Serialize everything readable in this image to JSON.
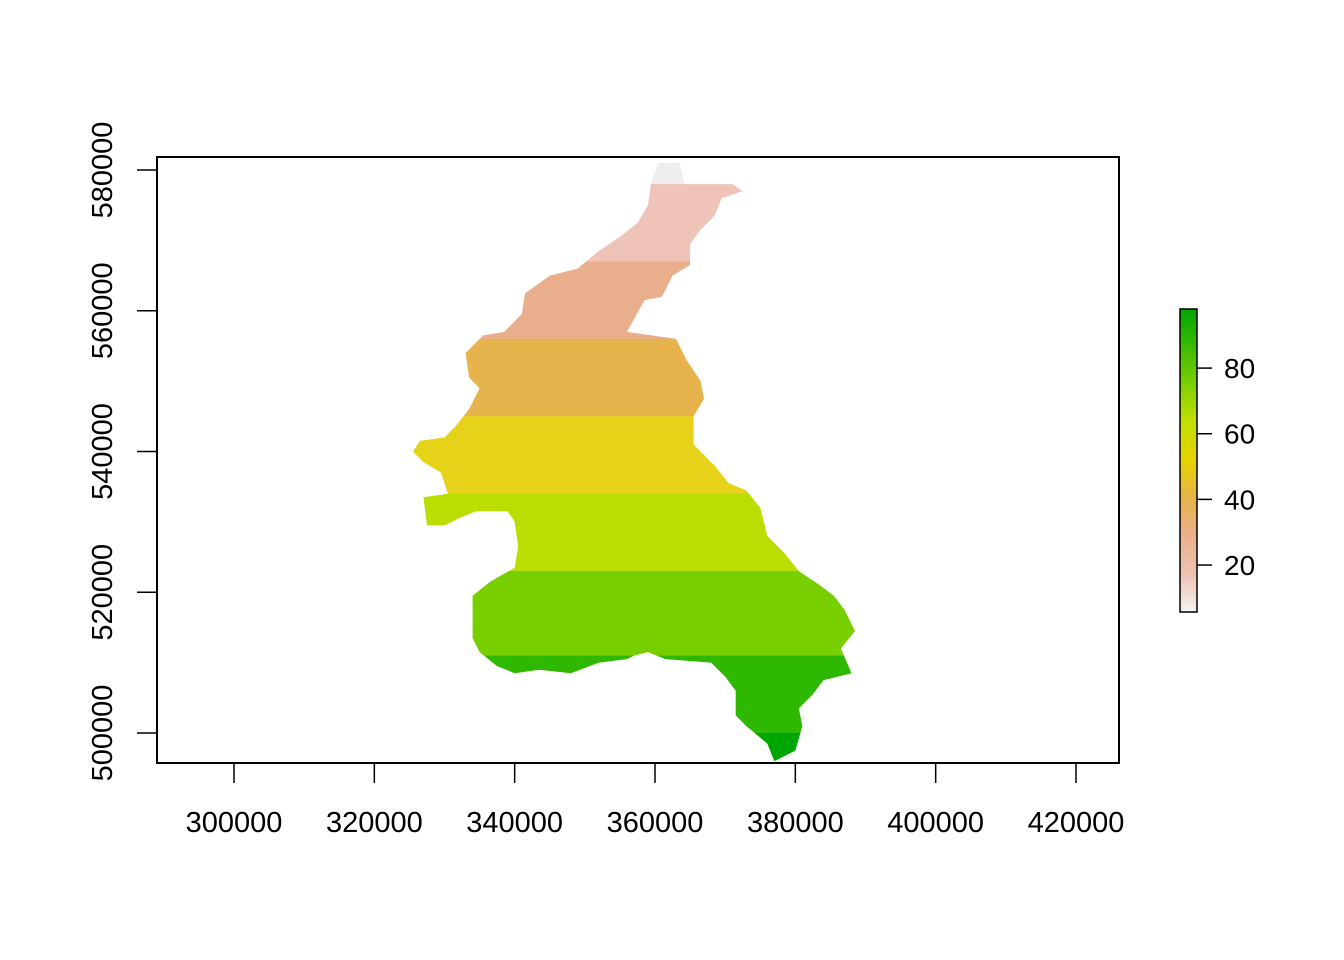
{
  "map": {
    "type": "raster",
    "x_axis": {
      "range": [
        288000,
        425000
      ],
      "ticks": [
        "300000",
        "320000",
        "340000",
        "360000",
        "380000",
        "400000",
        "420000"
      ]
    },
    "y_axis": {
      "range": [
        496000,
        582000
      ],
      "ticks": [
        "500000",
        "520000",
        "540000",
        "560000",
        "580000"
      ]
    },
    "legend": {
      "placement": "right",
      "range": [
        6,
        98
      ],
      "ticks": [
        "20",
        "40",
        "60",
        "80"
      ],
      "colors": [
        "#f2f2f2",
        "#efc2b3",
        "#eab18c",
        "#e6b34a",
        "#e6d200",
        "#c3e000",
        "#7ed000",
        "#3cba00",
        "#00a600"
      ]
    },
    "bands": [
      {
        "y_from": 578000,
        "y_to": 582000,
        "value": 6,
        "color": "#efeeee"
      },
      {
        "y_from": 567000,
        "y_to": 578000,
        "value": 16,
        "color": "#efc3b8"
      },
      {
        "y_from": 556000,
        "y_to": 567000,
        "value": 28,
        "color": "#e9ae8c"
      },
      {
        "y_from": 545000,
        "y_to": 556000,
        "value": 38,
        "color": "#e7b34d"
      },
      {
        "y_from": 534000,
        "y_to": 545000,
        "value": 50,
        "color": "#e6d218"
      },
      {
        "y_from": 523000,
        "y_to": 534000,
        "value": 60,
        "color": "#bcdd00"
      },
      {
        "y_from": 511000,
        "y_to": 523000,
        "value": 72,
        "color": "#78cf00"
      },
      {
        "y_from": 500000,
        "y_to": 511000,
        "value": 86,
        "color": "#2fb800"
      },
      {
        "y_from": 495000,
        "y_to": 500000,
        "value": 96,
        "color": "#00a600"
      }
    ],
    "region_outline": [
      [
        360500,
        581000
      ],
      [
        363500,
        581000
      ],
      [
        364200,
        578000
      ],
      [
        371000,
        578000
      ],
      [
        372500,
        577000
      ],
      [
        369500,
        576000
      ],
      [
        368500,
        573500
      ],
      [
        366500,
        571500
      ],
      [
        365000,
        569500
      ],
      [
        365000,
        566500
      ],
      [
        362500,
        565000
      ],
      [
        361000,
        562000
      ],
      [
        358500,
        561500
      ],
      [
        356000,
        557000
      ],
      [
        363000,
        556000
      ],
      [
        364500,
        553000
      ],
      [
        366500,
        550000
      ],
      [
        367000,
        547500
      ],
      [
        365500,
        545000
      ],
      [
        365500,
        541000
      ],
      [
        368500,
        538000
      ],
      [
        370500,
        535500
      ],
      [
        373000,
        534500
      ],
      [
        375000,
        532000
      ],
      [
        376000,
        528000
      ],
      [
        378500,
        525500
      ],
      [
        380500,
        523000
      ],
      [
        383500,
        521000
      ],
      [
        385500,
        519500
      ],
      [
        387000,
        517500
      ],
      [
        388500,
        514500
      ],
      [
        386500,
        512000
      ],
      [
        388000,
        508500
      ],
      [
        384000,
        507500
      ],
      [
        382500,
        505500
      ],
      [
        380500,
        503500
      ],
      [
        381000,
        501000
      ],
      [
        380000,
        497500
      ],
      [
        377000,
        496000
      ],
      [
        376000,
        498500
      ],
      [
        373000,
        501000
      ],
      [
        371500,
        502500
      ],
      [
        371500,
        506000
      ],
      [
        370000,
        508000
      ],
      [
        368000,
        510000
      ],
      [
        361500,
        510500
      ],
      [
        359000,
        511500
      ],
      [
        357000,
        511000
      ],
      [
        356000,
        510500
      ],
      [
        352000,
        510000
      ],
      [
        348000,
        508500
      ],
      [
        343500,
        509000
      ],
      [
        340000,
        508500
      ],
      [
        337500,
        509500
      ],
      [
        335000,
        511500
      ],
      [
        334000,
        513500
      ],
      [
        334000,
        519500
      ],
      [
        336500,
        521500
      ],
      [
        340000,
        523500
      ],
      [
        340500,
        526500
      ],
      [
        340000,
        530000
      ],
      [
        339000,
        531500
      ],
      [
        334500,
        531500
      ],
      [
        332000,
        530500
      ],
      [
        330000,
        529500
      ],
      [
        327500,
        529500
      ],
      [
        327000,
        533500
      ],
      [
        330500,
        534000
      ],
      [
        329500,
        537000
      ],
      [
        327000,
        538500
      ],
      [
        325500,
        540000
      ],
      [
        326500,
        541500
      ],
      [
        330000,
        542000
      ],
      [
        331500,
        543500
      ],
      [
        333500,
        546000
      ],
      [
        335000,
        549000
      ],
      [
        333500,
        550500
      ],
      [
        333000,
        554000
      ],
      [
        335500,
        556500
      ],
      [
        338500,
        557000
      ],
      [
        341000,
        559500
      ],
      [
        341500,
        562500
      ],
      [
        345000,
        565000
      ],
      [
        349000,
        566000
      ],
      [
        352000,
        568500
      ],
      [
        355000,
        570500
      ],
      [
        357500,
        572500
      ],
      [
        359000,
        575000
      ],
      [
        359500,
        578500
      ]
    ]
  }
}
